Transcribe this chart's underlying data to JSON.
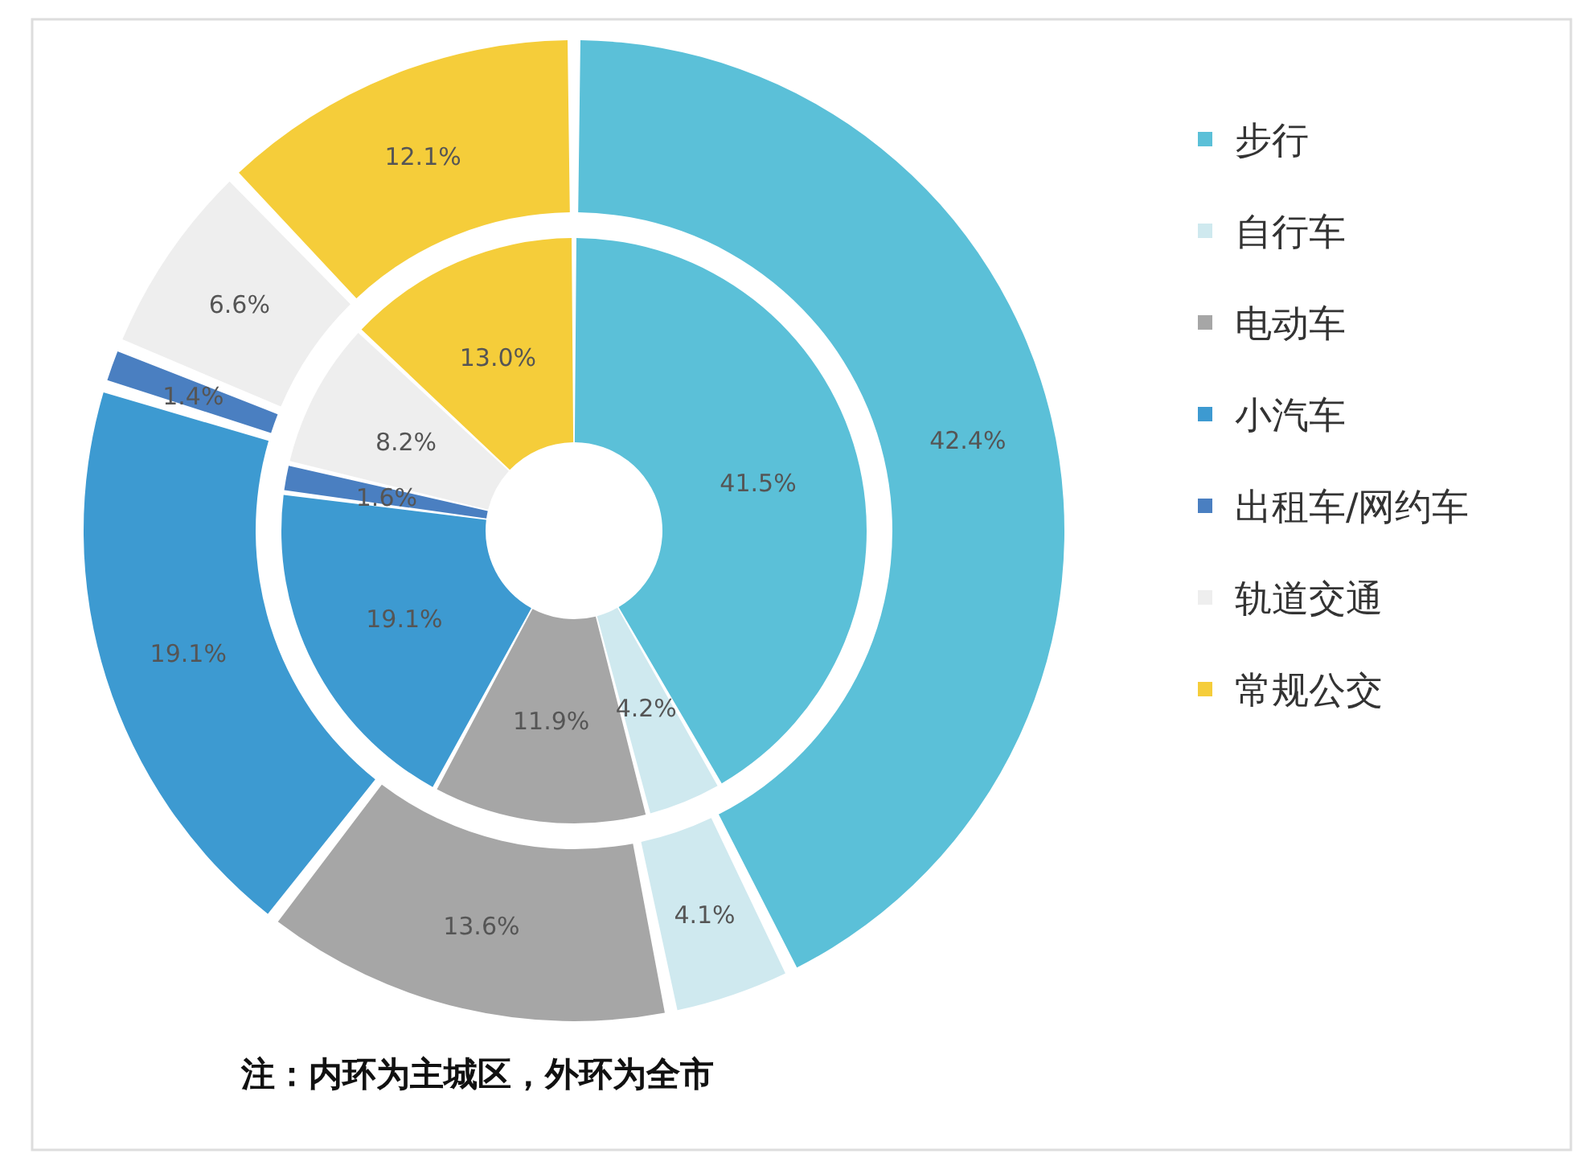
{
  "chart_data": {
    "type": "donut",
    "categories": [
      "步行",
      "自行车",
      "电动车",
      "小汽车",
      "出租车/网约车",
      "轨道交通",
      "常规公交"
    ],
    "colors": [
      "#5bc0d8",
      "#cfe9ef",
      "#a6a6a6",
      "#3d9ad1",
      "#4a7fc1",
      "#eeeeee",
      "#f5cd3a"
    ],
    "legend": "right",
    "annotations": [
      "注：内环为主城区，外环为全市"
    ],
    "series": [
      {
        "values": [
          41.5,
          4.2,
          11.9,
          19.1,
          1.6,
          8.2,
          13.0
        ],
        "value_labels": [
          "41.5%",
          "4.2%",
          "11.9%",
          "19.1%",
          "1.6%",
          "8.2%",
          "13.0%"
        ]
      },
      {
        "values": [
          42.4,
          4.1,
          13.6,
          19.1,
          1.4,
          6.6,
          12.1
        ],
        "value_labels": [
          "42.4%",
          "4.1%",
          "13.6%",
          "19.1%",
          "1.4%",
          "6.6%",
          "12.1%"
        ]
      }
    ]
  }
}
